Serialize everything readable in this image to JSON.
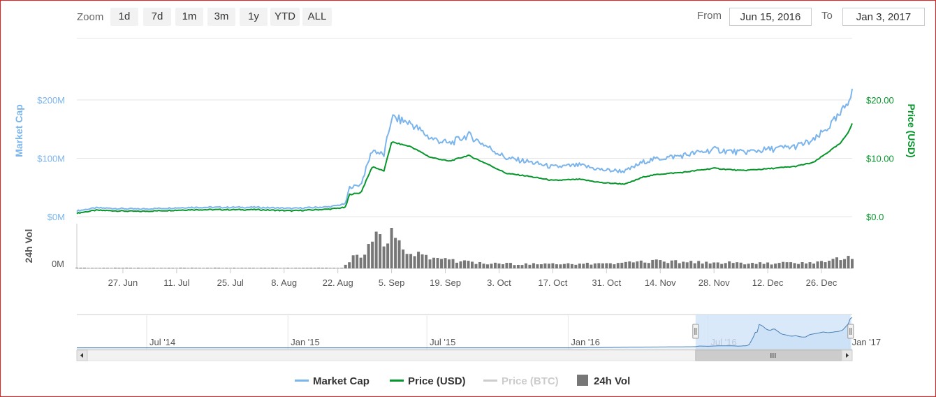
{
  "toolbar": {
    "zoom_label": "Zoom",
    "zoom_buttons": [
      "1d",
      "7d",
      "1m",
      "3m",
      "1y",
      "YTD",
      "ALL"
    ],
    "from_label": "From",
    "from_value": "Jun 15, 2016",
    "to_label": "To",
    "to_value": "Jan 3, 2017"
  },
  "legend": {
    "market_cap": "Market Cap",
    "price_usd": "Price (USD)",
    "price_btc": "Price (BTC)",
    "volume": "24h Vol"
  },
  "colors": {
    "market_cap": "#7cb5ec",
    "price_usd": "#06962b",
    "price_btc": "#cccccc",
    "volume": "#777777",
    "navigator_fill": "#cfe3f7"
  },
  "chart_data": {
    "type": "line",
    "title": "",
    "x_start": "Jun 15, 2016",
    "x_end": "Jan 3, 2017",
    "x_tick_labels": [
      "27. Jun",
      "11. Jul",
      "25. Jul",
      "8. Aug",
      "22. Aug",
      "5. Sep",
      "19. Sep",
      "3. Oct",
      "17. Oct",
      "31. Oct",
      "14. Nov",
      "28. Nov",
      "12. Dec",
      "26. Dec"
    ],
    "y_left": {
      "label": "Market Cap",
      "ticks": [
        "$0M",
        "$100M",
        "$200M"
      ],
      "range_millions": [
        0,
        200
      ]
    },
    "y_right": {
      "label": "Price (USD)",
      "ticks": [
        "$0.0",
        "$10.00",
        "$20.00"
      ],
      "range": [
        0,
        20
      ]
    },
    "volume_axis": {
      "label": "24h Vol",
      "ticks": [
        "0M"
      ]
    },
    "series": [
      {
        "name": "Market Cap",
        "unit": "USD millions",
        "points": [
          [
            "Jun 15, 2016",
            10
          ],
          [
            "Jun 20, 2016",
            15
          ],
          [
            "Jul 1, 2016",
            13
          ],
          [
            "Jul 15, 2016",
            16
          ],
          [
            "Aug 1, 2016",
            16
          ],
          [
            "Aug 10, 2016",
            14
          ],
          [
            "Aug 20, 2016",
            17
          ],
          [
            "Aug 24, 2016",
            22
          ],
          [
            "Aug 25, 2016",
            50
          ],
          [
            "Aug 28, 2016",
            55
          ],
          [
            "Aug 31, 2016",
            115
          ],
          [
            "Sep 3, 2016",
            105
          ],
          [
            "Sep 5, 2016",
            170
          ],
          [
            "Sep 10, 2016",
            160
          ],
          [
            "Sep 15, 2016",
            135
          ],
          [
            "Sep 20, 2016",
            125
          ],
          [
            "Sep 25, 2016",
            140
          ],
          [
            "Sep 30, 2016",
            120
          ],
          [
            "Oct 5, 2016",
            100
          ],
          [
            "Oct 10, 2016",
            95
          ],
          [
            "Oct 17, 2016",
            85
          ],
          [
            "Oct 24, 2016",
            88
          ],
          [
            "Oct 30, 2016",
            80
          ],
          [
            "Nov 5, 2016",
            78
          ],
          [
            "Nov 10, 2016",
            95
          ],
          [
            "Nov 14, 2016",
            100
          ],
          [
            "Nov 20, 2016",
            105
          ],
          [
            "Nov 28, 2016",
            115
          ],
          [
            "Dec 5, 2016",
            110
          ],
          [
            "Dec 12, 2016",
            115
          ],
          [
            "Dec 19, 2016",
            120
          ],
          [
            "Dec 24, 2016",
            130
          ],
          [
            "Dec 28, 2016",
            155
          ],
          [
            "Dec 31, 2016",
            175
          ],
          [
            "Jan 2, 2017",
            200
          ],
          [
            "Jan 3, 2017",
            220
          ]
        ]
      },
      {
        "name": "Price (USD)",
        "unit": "USD",
        "points": [
          [
            "Jun 15, 2016",
            0.6
          ],
          [
            "Jun 20, 2016",
            1.1
          ],
          [
            "Jul 1, 2016",
            0.9
          ],
          [
            "Jul 15, 2016",
            1.2
          ],
          [
            "Aug 1, 2016",
            1.2
          ],
          [
            "Aug 10, 2016",
            1.0
          ],
          [
            "Aug 20, 2016",
            1.3
          ],
          [
            "Aug 24, 2016",
            1.6
          ],
          [
            "Aug 25, 2016",
            3.8
          ],
          [
            "Aug 28, 2016",
            4.1
          ],
          [
            "Aug 31, 2016",
            8.6
          ],
          [
            "Sep 3, 2016",
            7.8
          ],
          [
            "Sep 5, 2016",
            12.8
          ],
          [
            "Sep 10, 2016",
            12.0
          ],
          [
            "Sep 15, 2016",
            10.2
          ],
          [
            "Sep 20, 2016",
            9.5
          ],
          [
            "Sep 25, 2016",
            10.5
          ],
          [
            "Sep 30, 2016",
            9.0
          ],
          [
            "Oct 5, 2016",
            7.4
          ],
          [
            "Oct 10, 2016",
            7.0
          ],
          [
            "Oct 17, 2016",
            6.2
          ],
          [
            "Oct 24, 2016",
            6.4
          ],
          [
            "Oct 30, 2016",
            5.8
          ],
          [
            "Nov 5, 2016",
            5.6
          ],
          [
            "Nov 10, 2016",
            6.9
          ],
          [
            "Nov 14, 2016",
            7.3
          ],
          [
            "Nov 20, 2016",
            7.6
          ],
          [
            "Nov 28, 2016",
            8.3
          ],
          [
            "Dec 5, 2016",
            7.9
          ],
          [
            "Dec 12, 2016",
            8.2
          ],
          [
            "Dec 19, 2016",
            8.6
          ],
          [
            "Dec 24, 2016",
            9.3
          ],
          [
            "Dec 28, 2016",
            11.2
          ],
          [
            "Dec 31, 2016",
            12.6
          ],
          [
            "Jan 2, 2017",
            14.5
          ],
          [
            "Jan 3, 2017",
            16.0
          ]
        ]
      },
      {
        "name": "Price (BTC)",
        "visible": false,
        "points": []
      },
      {
        "name": "24h Vol",
        "type": "column",
        "relative_values": true,
        "points": [
          [
            "Aug 24, 2016",
            0.1
          ],
          [
            "Aug 26, 2016",
            0.3
          ],
          [
            "Aug 28, 2016",
            0.25
          ],
          [
            "Aug 30, 2016",
            0.55
          ],
          [
            "Sep 1, 2016",
            0.85
          ],
          [
            "Sep 3, 2016",
            0.55
          ],
          [
            "Sep 5, 2016",
            0.95
          ],
          [
            "Sep 7, 2016",
            0.6
          ],
          [
            "Sep 10, 2016",
            0.4
          ],
          [
            "Sep 14, 2016",
            0.3
          ],
          [
            "Sep 20, 2016",
            0.2
          ],
          [
            "Sep 30, 2016",
            0.12
          ],
          [
            "Oct 15, 2016",
            0.1
          ],
          [
            "Nov 1, 2016",
            0.12
          ],
          [
            "Nov 12, 2016",
            0.18
          ],
          [
            "Nov 28, 2016",
            0.15
          ],
          [
            "Dec 12, 2016",
            0.12
          ],
          [
            "Dec 26, 2016",
            0.15
          ],
          [
            "Dec 30, 2016",
            0.25
          ],
          [
            "Jan 3, 2017",
            0.3
          ]
        ]
      }
    ],
    "navigator": {
      "x_tick_labels": [
        "Jul '14",
        "Jan '15",
        "Jul '15",
        "Jan '16",
        "Jul '16",
        "Jan '17"
      ],
      "x_start": "Apr 1, 2014",
      "x_end": "Jan 5, 2017"
    },
    "legend_position": "bottom-center",
    "grid": true
  }
}
